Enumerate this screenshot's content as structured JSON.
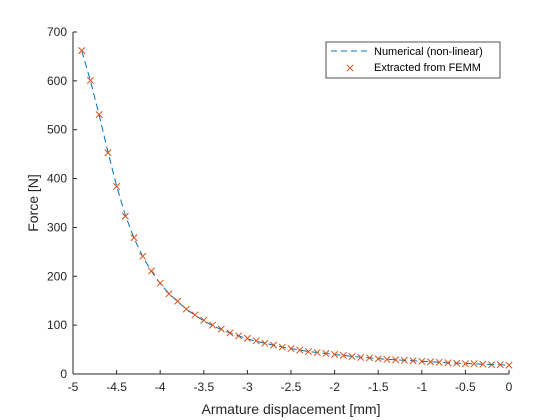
{
  "chart_data": {
    "type": "line",
    "xlabel": "Armature displacement [mm]",
    "ylabel": "Force [N]",
    "xlim": [
      -5,
      0
    ],
    "ylim": [
      0,
      700
    ],
    "xticks": [
      -5,
      -4.5,
      -4,
      -3.5,
      -3,
      -2.5,
      -2,
      -1.5,
      -1,
      -0.5,
      0
    ],
    "xtick_labels": [
      "-5",
      "-4.5",
      "-4",
      "-3.5",
      "-3",
      "-2.5",
      "-2",
      "-1.5",
      "-1",
      "-0.5",
      "0"
    ],
    "yticks": [
      0,
      100,
      200,
      300,
      400,
      500,
      600,
      700
    ],
    "ytick_labels": [
      "0",
      "100",
      "200",
      "300",
      "400",
      "500",
      "600",
      "700"
    ],
    "grid": false,
    "legend_position": "top-right",
    "series": [
      {
        "name": "Numerical (non-linear)",
        "style": "dashed-line",
        "color": "#0072BD",
        "x": [
          -4.9,
          -4.8,
          -4.7,
          -4.6,
          -4.5,
          -4.4,
          -4.3,
          -4.2,
          -4.1,
          -4.0,
          -3.9,
          -3.8,
          -3.7,
          -3.6,
          -3.5,
          -3.4,
          -3.3,
          -3.2,
          -3.1,
          -3.0,
          -2.9,
          -2.8,
          -2.7,
          -2.6,
          -2.5,
          -2.4,
          -2.3,
          -2.2,
          -2.1,
          -2.0,
          -1.9,
          -1.8,
          -1.7,
          -1.6,
          -1.5,
          -1.4,
          -1.3,
          -1.2,
          -1.1,
          -1.0,
          -0.9,
          -0.8,
          -0.7,
          -0.6,
          -0.5,
          -0.4,
          -0.3,
          -0.2,
          -0.1,
          0.0
        ],
        "y": [
          662,
          600,
          530,
          455,
          385,
          325,
          278,
          240,
          210,
          185,
          165,
          148,
          133,
          120,
          109,
          99,
          91,
          84,
          78,
          72,
          67,
          63,
          59,
          55,
          52,
          49,
          46,
          44,
          42,
          40,
          38,
          36,
          34.5,
          33,
          31.5,
          30,
          29,
          28,
          27,
          26,
          25,
          24,
          23,
          22.2,
          21.5,
          20.8,
          20,
          19.4,
          18.8,
          18
        ]
      },
      {
        "name": "Extracted from FEMM",
        "style": "x-markers",
        "color": "#D95319",
        "x": [
          -4.9,
          -4.8,
          -4.7,
          -4.6,
          -4.5,
          -4.4,
          -4.3,
          -4.2,
          -4.1,
          -4.0,
          -3.9,
          -3.8,
          -3.7,
          -3.6,
          -3.5,
          -3.4,
          -3.3,
          -3.2,
          -3.1,
          -3.0,
          -2.9,
          -2.8,
          -2.7,
          -2.6,
          -2.5,
          -2.4,
          -2.3,
          -2.2,
          -2.1,
          -2.0,
          -1.9,
          -1.8,
          -1.7,
          -1.6,
          -1.5,
          -1.4,
          -1.3,
          -1.2,
          -1.1,
          -1.0,
          -0.9,
          -0.8,
          -0.7,
          -0.6,
          -0.5,
          -0.4,
          -0.3,
          -0.2,
          -0.1,
          0.0
        ],
        "y": [
          662,
          601,
          531,
          453,
          384,
          323,
          279,
          241,
          211,
          186,
          164,
          149,
          133,
          121,
          110,
          100,
          92,
          84,
          78,
          73,
          68,
          63,
          59,
          55,
          52,
          49,
          46,
          44,
          42,
          40,
          38,
          36,
          34,
          33,
          31,
          30,
          29,
          28,
          27,
          26,
          25,
          24,
          23,
          22,
          21,
          21,
          20,
          19,
          19,
          18
        ]
      }
    ]
  }
}
